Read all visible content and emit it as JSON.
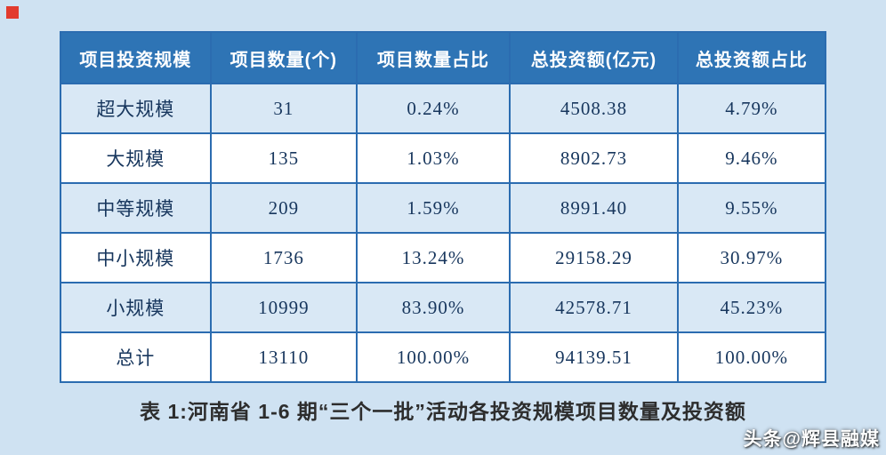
{
  "page": {
    "caption": "表 1:河南省 1-6 期“三个一批”活动各投资规模项目数量及投资额",
    "watermark": "头条@辉县融媒"
  },
  "colors": {
    "page_background": "#cfe2f2",
    "header_background": "#2e74b5",
    "header_text": "#ffffff",
    "row_alt_background": "#d9e8f5",
    "row_background": "#ffffff",
    "border": "#2b6cb0",
    "body_text": "#17365d",
    "corner_mark": "#e23b2e"
  },
  "chart_data": {
    "type": "table",
    "title": "表 1:河南省 1-6 期“三个一批”活动各投资规模项目数量及投资额",
    "columns": [
      "项目投资规模",
      "项目数量(个)",
      "项目数量占比",
      "总投资额(亿元)",
      "总投资额占比"
    ],
    "rows": [
      [
        "超大规模",
        "31",
        "0.24%",
        "4508.38",
        "4.79%"
      ],
      [
        "大规模",
        "135",
        "1.03%",
        "8902.73",
        "9.46%"
      ],
      [
        "中等规模",
        "209",
        "1.59%",
        "8991.40",
        "9.55%"
      ],
      [
        "中小规模",
        "1736",
        "13.24%",
        "29158.29",
        "30.97%"
      ],
      [
        "小规模",
        "10999",
        "83.90%",
        "42578.71",
        "45.23%"
      ],
      [
        "总计",
        "13110",
        "100.00%",
        "94139.51",
        "100.00%"
      ]
    ]
  }
}
